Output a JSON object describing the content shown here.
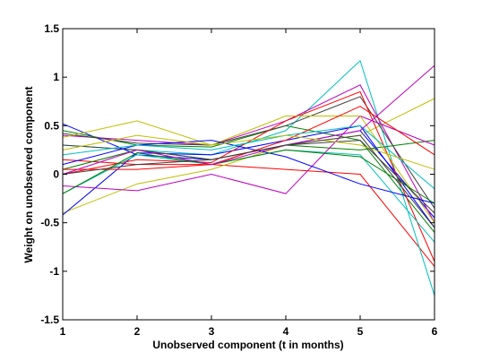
{
  "chart_data": {
    "type": "line",
    "x_label": "Unobserved component (t in months)",
    "y_label": "Weight on unobserved component",
    "x": [
      1,
      2,
      3,
      4,
      5,
      6
    ],
    "xlim": [
      1,
      6
    ],
    "xticks": [
      1,
      2,
      3,
      4,
      5,
      6
    ],
    "ylim": [
      -1.5,
      1.5
    ],
    "yticks": [
      -1.5,
      -1,
      -0.5,
      0,
      0.5,
      1,
      1.5
    ],
    "series": [
      {
        "color": "#0000ff",
        "values": [
          0.52,
          0.2,
          0.15,
          0.3,
          0.45,
          -0.45
        ]
      },
      {
        "color": "#008000",
        "values": [
          0.45,
          0.3,
          0.28,
          0.5,
          0.35,
          -0.6
        ]
      },
      {
        "color": "#ff0000",
        "values": [
          0.15,
          0.1,
          0.1,
          0.05,
          0.0,
          -0.95
        ]
      },
      {
        "color": "#00bfbf",
        "values": [
          0.3,
          0.25,
          0.2,
          0.45,
          1.17,
          -1.25
        ]
      },
      {
        "color": "#bf00bf",
        "values": [
          0.4,
          0.35,
          0.3,
          0.55,
          0.92,
          -0.5
        ]
      },
      {
        "color": "#bfbf00",
        "values": [
          -0.4,
          -0.1,
          0.05,
          0.3,
          0.4,
          0.78
        ]
      },
      {
        "color": "#404040",
        "values": [
          0.42,
          0.32,
          0.3,
          0.5,
          0.8,
          -0.35
        ]
      },
      {
        "color": "#0000ff",
        "values": [
          -0.42,
          0.22,
          0.2,
          0.35,
          0.5,
          -0.55
        ]
      },
      {
        "color": "#008000",
        "values": [
          0.05,
          0.25,
          0.15,
          0.3,
          0.25,
          0.35
        ]
      },
      {
        "color": "#ff0000",
        "values": [
          0.0,
          0.15,
          0.12,
          0.55,
          0.85,
          -0.9
        ]
      },
      {
        "color": "#00bfbf",
        "values": [
          -0.2,
          0.2,
          0.1,
          0.25,
          0.2,
          -0.7
        ]
      },
      {
        "color": "#bf00bf",
        "values": [
          -0.12,
          -0.17,
          0.0,
          -0.2,
          0.6,
          0.3
        ]
      },
      {
        "color": "#bfbf00",
        "values": [
          0.38,
          0.55,
          0.3,
          0.6,
          0.6,
          -0.5
        ]
      },
      {
        "color": "#404040",
        "values": [
          0.3,
          0.25,
          0.15,
          0.3,
          0.35,
          -0.4
        ]
      },
      {
        "color": "#0000ff",
        "values": [
          0.1,
          0.3,
          0.35,
          0.18,
          -0.1,
          -0.3
        ]
      },
      {
        "color": "#008000",
        "values": [
          -0.2,
          0.22,
          0.1,
          0.25,
          0.18,
          -0.3
        ]
      },
      {
        "color": "#ff0000",
        "values": [
          0.05,
          0.05,
          0.1,
          0.35,
          0.7,
          0.2
        ]
      },
      {
        "color": "#00bfbf",
        "values": [
          0.2,
          0.3,
          0.25,
          0.4,
          0.5,
          -0.15
        ]
      },
      {
        "color": "#bf00bf",
        "values": [
          0.0,
          0.25,
          0.1,
          0.3,
          0.45,
          1.12
        ]
      },
      {
        "color": "#bfbf00",
        "values": [
          0.25,
          0.4,
          0.3,
          0.4,
          0.3,
          0.05
        ]
      },
      {
        "color": "#404040",
        "values": [
          0.0,
          0.1,
          0.15,
          0.3,
          0.4,
          -0.55
        ]
      }
    ]
  }
}
